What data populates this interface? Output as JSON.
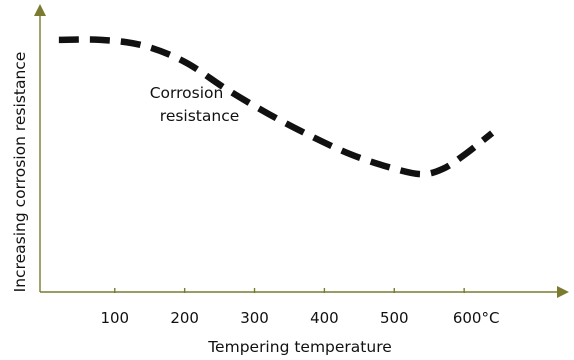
{
  "chart_data": {
    "type": "line",
    "title": "",
    "xlabel": "Tempering temperature",
    "ylabel": "Increasing corrosion resistance",
    "x_ticks": [
      {
        "value": 100,
        "label": "100"
      },
      {
        "value": 200,
        "label": "200"
      },
      {
        "value": 300,
        "label": "300"
      },
      {
        "value": 400,
        "label": "400"
      },
      {
        "value": 500,
        "label": "500"
      },
      {
        "value": 600,
        "label": "600°C"
      }
    ],
    "xlim": [
      -7,
      730
    ],
    "ylim": [
      0,
      100
    ],
    "grid": false,
    "legend": "none",
    "y_tick_labels": false,
    "series": [
      {
        "name": "Corrosion resistance",
        "line_style": "dashed",
        "color": "#111111",
        "x": [
          20,
          80,
          140,
          200,
          260,
          320,
          380,
          440,
          500,
          540,
          570,
          600,
          640
        ],
        "y": [
          92,
          92,
          90,
          84,
          74,
          65,
          57,
          50,
          45,
          43,
          45,
          50,
          58
        ]
      }
    ],
    "annotations": [
      {
        "lines": [
          "Corrosion",
          "resistance"
        ],
        "x": 300,
        "y": 62
      }
    ]
  },
  "colors": {
    "axis": "#7a7a30",
    "line": "#111111",
    "text": "#111111"
  }
}
